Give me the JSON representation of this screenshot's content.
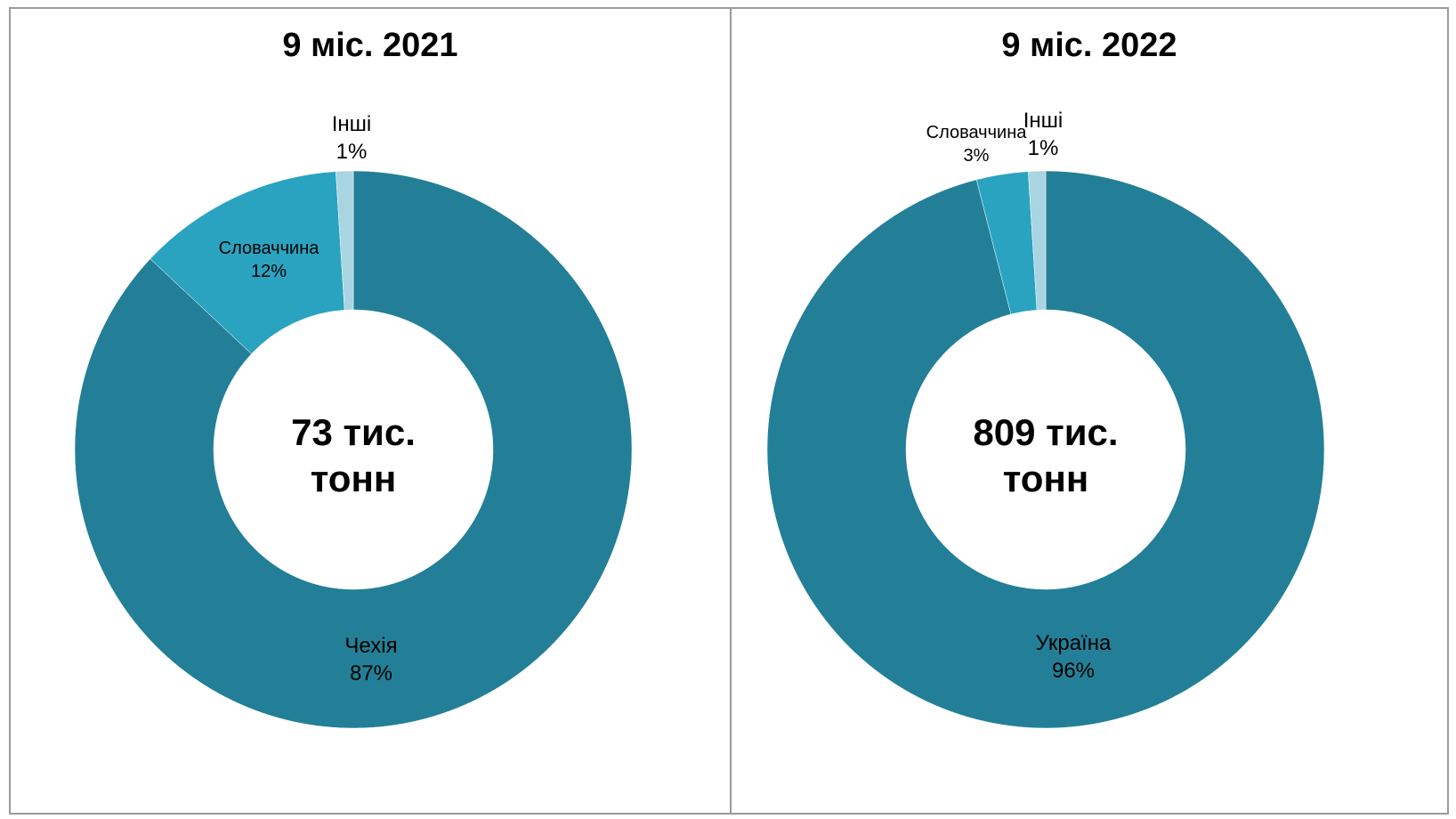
{
  "chart_data": [
    {
      "type": "pie",
      "variant": "donut",
      "title": "9 міс. 2021",
      "center_label_line1": "73 тис.",
      "center_label_line2": "тонн",
      "slices": [
        {
          "label": "Чехія",
          "value": 87,
          "value_label": "87%",
          "color": "#237f97"
        },
        {
          "label": "Словаччина",
          "value": 12,
          "value_label": "12%",
          "color": "#2aa3c0"
        },
        {
          "label": "Інші",
          "value": 1,
          "value_label": "1%",
          "color": "#a9d4e1"
        }
      ]
    },
    {
      "type": "pie",
      "variant": "donut",
      "title": "9 міс. 2022",
      "center_label_line1": "809 тис.",
      "center_label_line2": "тонн",
      "slices": [
        {
          "label": "Україна",
          "value": 96,
          "value_label": "96%",
          "color": "#237f97"
        },
        {
          "label": "Словаччина",
          "value": 3,
          "value_label": "3%",
          "color": "#2aa3c0"
        },
        {
          "label": "Інші",
          "value": 1,
          "value_label": "1%",
          "color": "#a9d4e1"
        }
      ]
    }
  ]
}
